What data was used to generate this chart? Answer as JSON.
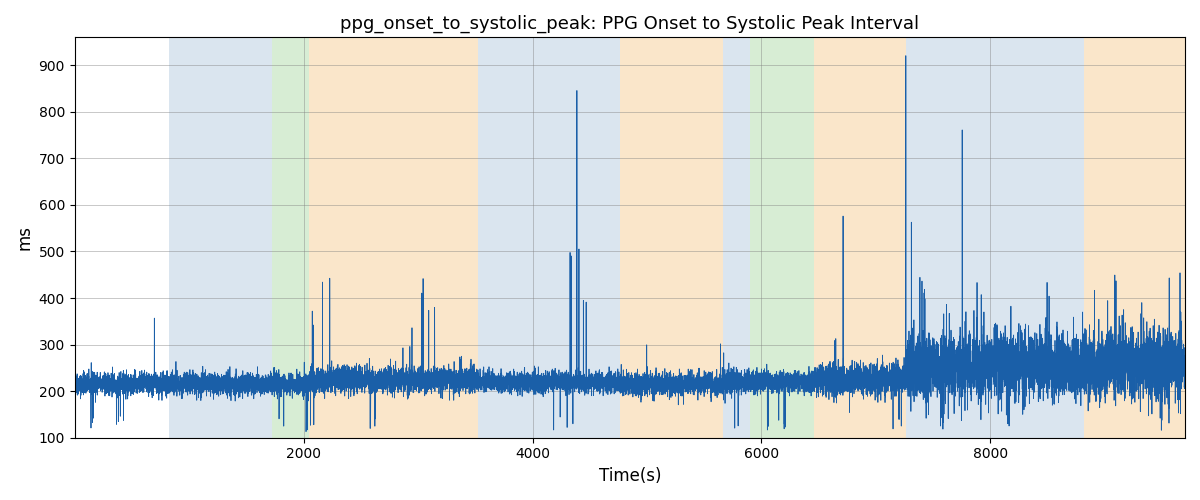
{
  "title": "ppg_onset_to_systolic_peak: PPG Onset to Systolic Peak Interval",
  "xlabel": "Time(s)",
  "ylabel": "ms",
  "ylim": [
    100,
    960
  ],
  "xlim": [
    0,
    9700
  ],
  "yticks": [
    100,
    200,
    300,
    400,
    500,
    600,
    700,
    800,
    900
  ],
  "xticks": [
    2000,
    4000,
    6000,
    8000
  ],
  "bg_bands": [
    {
      "xmin": 820,
      "xmax": 1720,
      "color": "#aec6dc",
      "alpha": 0.45
    },
    {
      "xmin": 1720,
      "xmax": 2050,
      "color": "#a8d8a0",
      "alpha": 0.45
    },
    {
      "xmin": 2050,
      "xmax": 3520,
      "color": "#f5c98a",
      "alpha": 0.45
    },
    {
      "xmin": 3520,
      "xmax": 4760,
      "color": "#aec6dc",
      "alpha": 0.45
    },
    {
      "xmin": 4760,
      "xmax": 5660,
      "color": "#f5c98a",
      "alpha": 0.45
    },
    {
      "xmin": 5660,
      "xmax": 5900,
      "color": "#aec6dc",
      "alpha": 0.45
    },
    {
      "xmin": 5900,
      "xmax": 6460,
      "color": "#a8d8a0",
      "alpha": 0.45
    },
    {
      "xmin": 6460,
      "xmax": 7260,
      "color": "#f5c98a",
      "alpha": 0.45
    },
    {
      "xmin": 7260,
      "xmax": 8820,
      "color": "#aec6dc",
      "alpha": 0.45
    },
    {
      "xmin": 8820,
      "xmax": 9700,
      "color": "#f5c98a",
      "alpha": 0.45
    }
  ],
  "line_color": "#1a5fa8",
  "line_width": 0.6,
  "seed": 42,
  "n_points": 14000
}
